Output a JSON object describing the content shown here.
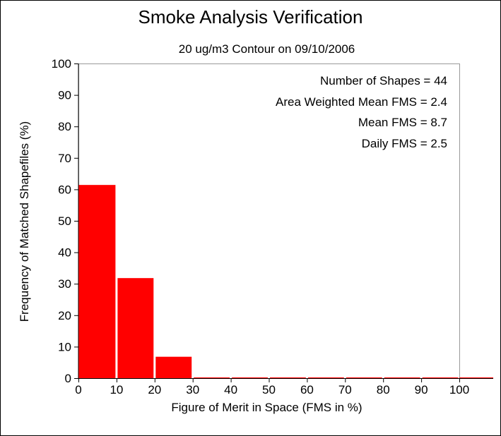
{
  "chart_data": {
    "type": "bar",
    "title": "Smoke Analysis Verification",
    "subtitle": "20 ug/m3 Contour on 09/10/2006",
    "xlabel": "Figure of Merit in Space (FMS in %)",
    "ylabel": "Frequency of Matched Shapefiles (%)",
    "xlim": [
      0,
      100
    ],
    "ylim": [
      0,
      100
    ],
    "xticks": [
      0,
      10,
      20,
      30,
      40,
      50,
      60,
      70,
      80,
      90,
      100
    ],
    "yticks": [
      0,
      10,
      20,
      30,
      40,
      50,
      60,
      70,
      80,
      90,
      100
    ],
    "bins": [
      [
        0,
        10
      ],
      [
        10,
        20
      ],
      [
        20,
        30
      ],
      [
        30,
        40
      ],
      [
        40,
        50
      ],
      [
        50,
        60
      ],
      [
        60,
        70
      ],
      [
        70,
        80
      ],
      [
        80,
        90
      ],
      [
        90,
        100
      ]
    ],
    "values": [
      61.4,
      31.8,
      6.8,
      0,
      0,
      0,
      0,
      0,
      0,
      0
    ],
    "bar_color": "#ff0000",
    "grid": false,
    "annotations": [
      "Number of Shapes = 44",
      "Area Weighted Mean FMS = 2.4",
      "Mean FMS = 8.7",
      "Daily FMS = 2.5"
    ]
  }
}
